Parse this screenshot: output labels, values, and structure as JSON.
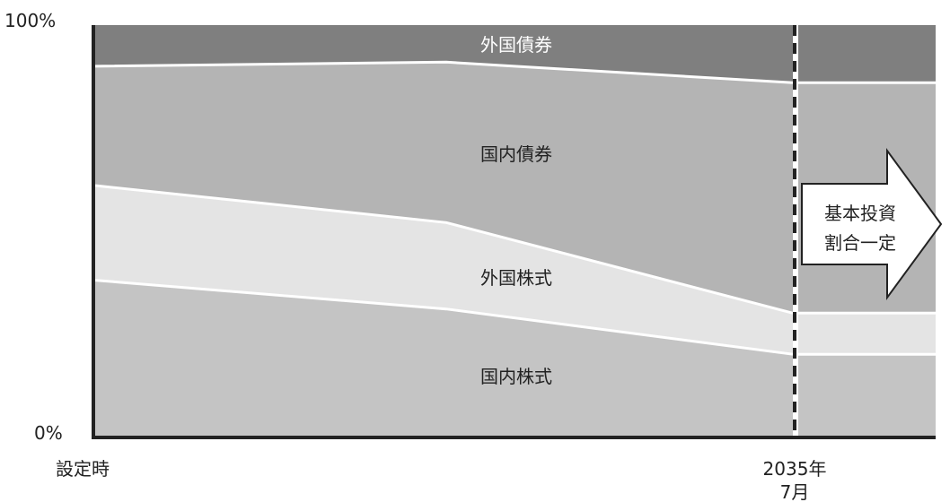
{
  "chart_data": {
    "type": "area",
    "stacked": true,
    "percent": true,
    "y_tick_labels": [
      "100%",
      "0%"
    ],
    "ylim": [
      0,
      100
    ],
    "x_tick_labels": [
      "設定時",
      "2035年\n7月"
    ],
    "series": [
      {
        "name": "国内株式",
        "values": [
          38,
          31,
          20,
          20
        ],
        "color": "#c4c4c4"
      },
      {
        "name": "外国株式",
        "values": [
          23,
          21,
          10,
          10
        ],
        "color": "#e4e4e4"
      },
      {
        "name": "国内債券",
        "values": [
          29,
          39,
          56,
          56
        ],
        "color": "#b4b4b4"
      },
      {
        "name": "外国債券",
        "values": [
          10,
          9,
          14,
          14
        ],
        "color": "#7f7f7f"
      }
    ],
    "x_points": [
      "設定時",
      "",
      "2035年7月",
      ""
    ],
    "annotation": {
      "lines": [
        "基本投資",
        "割合一定"
      ]
    }
  }
}
